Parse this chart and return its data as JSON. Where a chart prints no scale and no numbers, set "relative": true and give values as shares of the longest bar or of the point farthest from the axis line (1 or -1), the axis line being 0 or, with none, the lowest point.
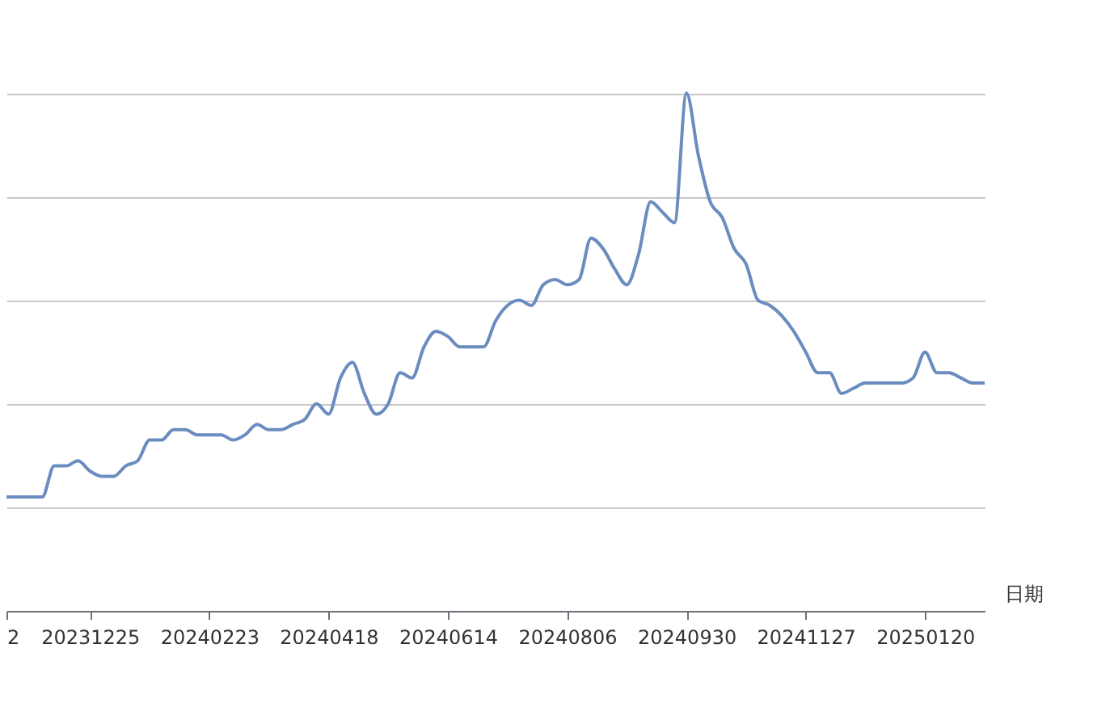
{
  "chart_data": {
    "type": "line",
    "relative": true,
    "xlabel": "日期",
    "grid": "y",
    "categories": [
      "2",
      null,
      null,
      null,
      null,
      null,
      null,
      "20231225",
      null,
      null,
      null,
      null,
      null,
      null,
      null,
      null,
      null,
      "20240223",
      null,
      null,
      null,
      null,
      null,
      null,
      null,
      null,
      null,
      "20240418",
      null,
      null,
      null,
      null,
      null,
      null,
      null,
      null,
      null,
      "20240614",
      null,
      null,
      null,
      null,
      null,
      null,
      null,
      null,
      null,
      "20240806",
      null,
      null,
      null,
      null,
      null,
      null,
      null,
      null,
      null,
      "20240930",
      null,
      null,
      null,
      null,
      null,
      null,
      null,
      null,
      null,
      "20241127",
      null,
      null,
      null,
      null,
      null,
      null,
      null,
      null,
      null,
      "20250120",
      null,
      null,
      null,
      null,
      null
    ],
    "series": [
      {
        "color": "#6a8cbf",
        "values": [
          0.22,
          0.22,
          0.22,
          0.22,
          0.28,
          0.28,
          0.29,
          0.27,
          0.26,
          0.26,
          0.28,
          0.29,
          0.33,
          0.33,
          0.35,
          0.35,
          0.34,
          0.34,
          0.34,
          0.33,
          0.34,
          0.36,
          0.35,
          0.35,
          0.36,
          0.37,
          0.4,
          0.38,
          0.45,
          0.48,
          0.42,
          0.38,
          0.4,
          0.46,
          0.45,
          0.51,
          0.54,
          0.53,
          0.51,
          0.51,
          0.51,
          0.56,
          0.59,
          0.6,
          0.59,
          0.63,
          0.64,
          0.63,
          0.64,
          0.72,
          0.7,
          0.66,
          0.63,
          0.69,
          0.79,
          0.77,
          0.75,
          1,
          0.88,
          0.79,
          0.76,
          0.7,
          0.67,
          0.6,
          0.59,
          0.57,
          0.54,
          0.5,
          0.46,
          0.46,
          0.42,
          0.43,
          0.44,
          0.44,
          0.44,
          0.44,
          0.45,
          0.5,
          0.46,
          0.46,
          0.45,
          0.44,
          0.44
        ]
      }
    ]
  }
}
